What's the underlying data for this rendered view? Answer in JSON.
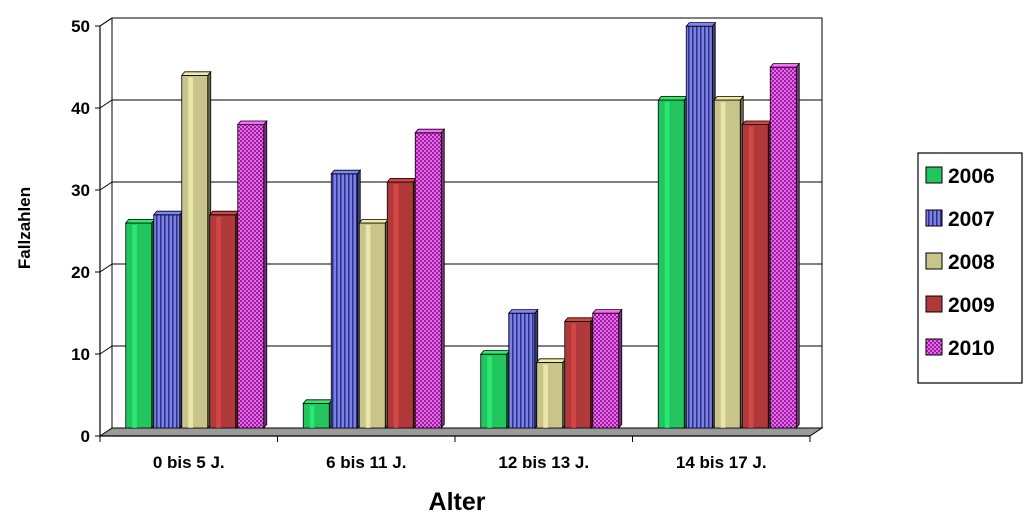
{
  "chart_data": {
    "type": "bar",
    "categories": [
      "0 bis 5 J.",
      "6 bis 11 J.",
      "12 bis 13 J.",
      "14 bis 17 J."
    ],
    "series": [
      {
        "name": "2006",
        "values": [
          25,
          3,
          9,
          40
        ],
        "color": "#22c55e"
      },
      {
        "name": "2007",
        "values": [
          26,
          31,
          14,
          49
        ],
        "color": "#6b6fd6"
      },
      {
        "name": "2008",
        "values": [
          43,
          25,
          8,
          40
        ],
        "color": "#c9c48a"
      },
      {
        "name": "2009",
        "values": [
          26,
          30,
          13,
          37
        ],
        "color": "#b03a3a"
      },
      {
        "name": "2010",
        "values": [
          37,
          36,
          14,
          44
        ],
        "color": "#e257e6"
      }
    ],
    "xlabel": "Alter",
    "ylabel": "Fallzahlen",
    "ylim": [
      0,
      50
    ],
    "yticks": [
      0,
      10,
      20,
      30,
      40,
      50
    ],
    "grid": true,
    "legend": "right"
  }
}
